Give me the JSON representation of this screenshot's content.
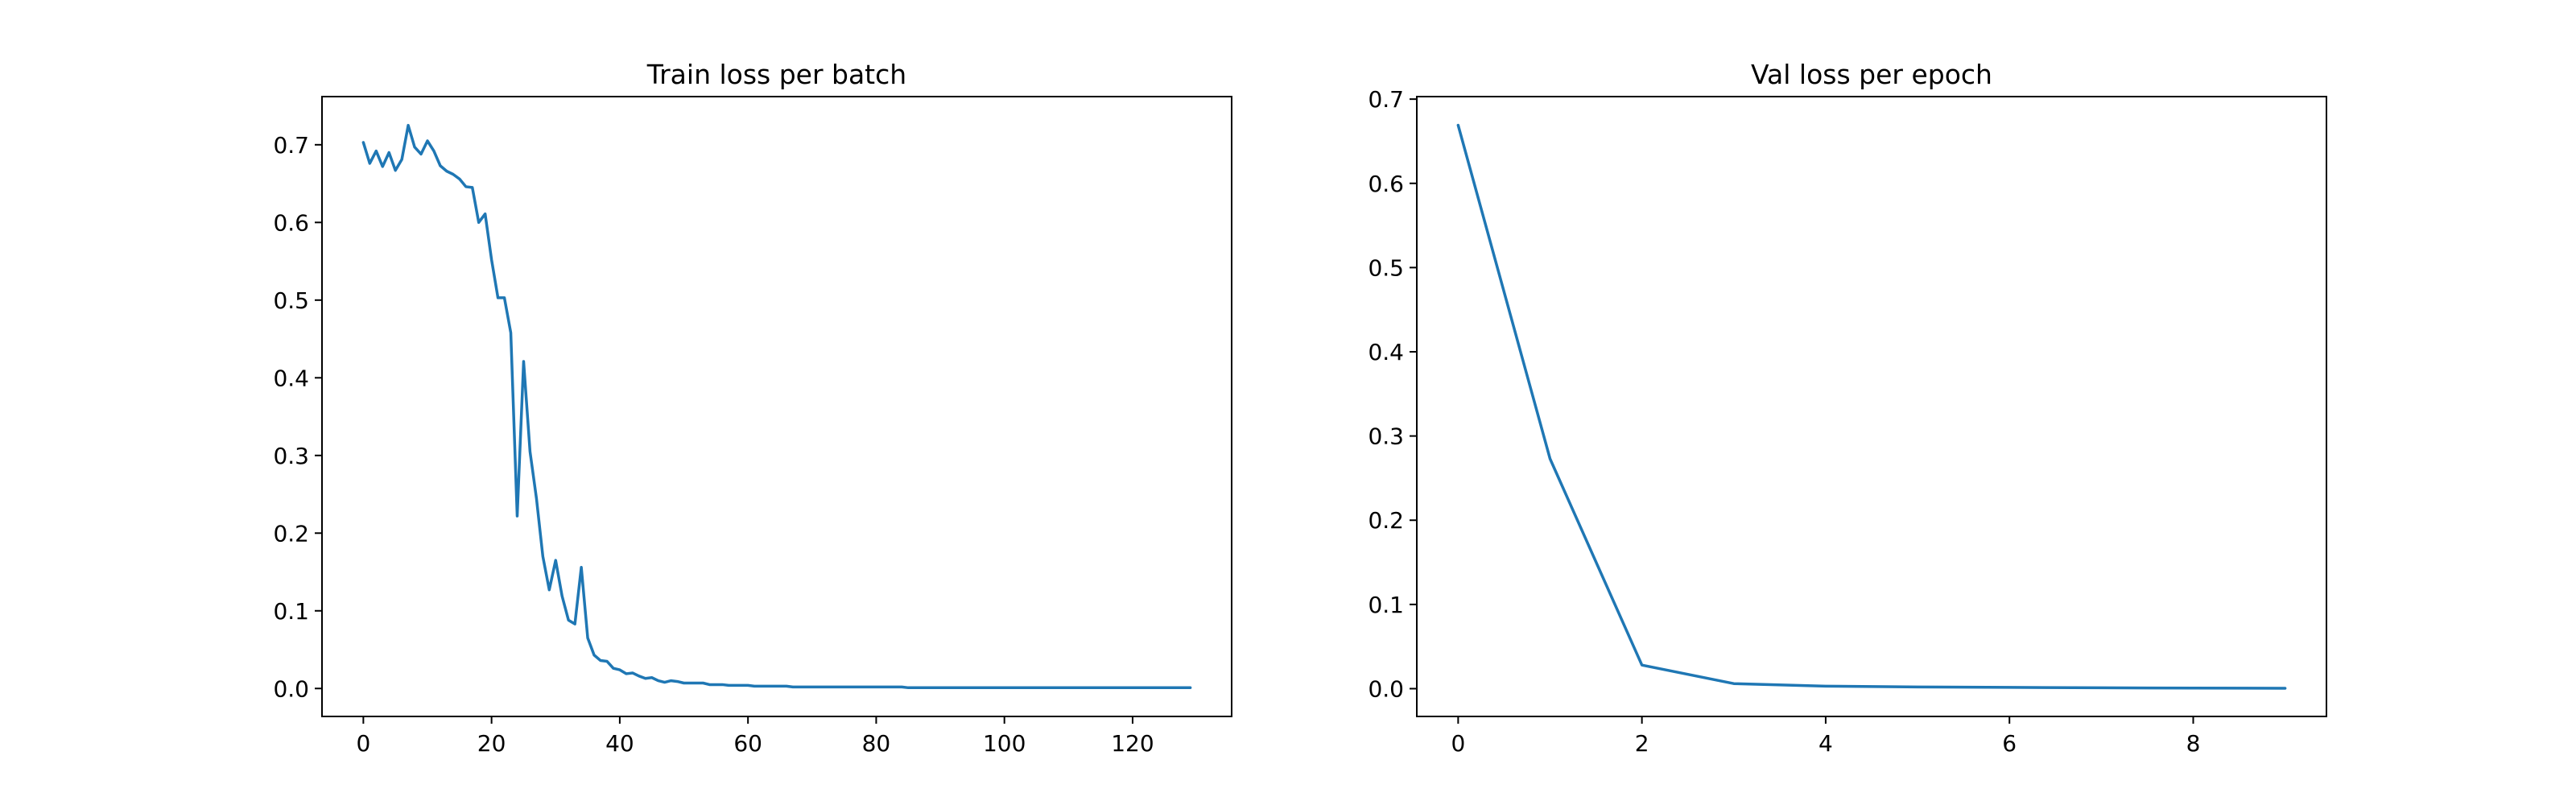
{
  "chart_data": [
    {
      "type": "line",
      "title": "Train loss per batch",
      "xlabel": "",
      "ylabel": "",
      "xlim": [
        -6.45,
        135.45
      ],
      "ylim": [
        -0.036,
        0.762
      ],
      "xticks": [
        0,
        20,
        40,
        60,
        80,
        100,
        120
      ],
      "xtick_labels": [
        "0",
        "20",
        "40",
        "60",
        "80",
        "100",
        "120"
      ],
      "yticks": [
        0.0,
        0.1,
        0.2,
        0.3,
        0.4,
        0.5,
        0.6,
        0.7
      ],
      "ytick_labels": [
        "0.0",
        "0.1",
        "0.2",
        "0.3",
        "0.4",
        "0.5",
        "0.6",
        "0.7"
      ],
      "grid": false,
      "series": [
        {
          "color": "#1f77b4",
          "x": [
            0,
            1,
            2,
            3,
            4,
            5,
            6,
            7,
            8,
            9,
            10,
            11,
            12,
            13,
            14,
            15,
            16,
            17,
            18,
            19,
            20,
            21,
            22,
            23,
            24,
            25,
            26,
            27,
            28,
            29,
            30,
            31,
            32,
            33,
            34,
            35,
            36,
            37,
            38,
            39,
            40,
            41,
            42,
            43,
            44,
            45,
            46,
            47,
            48,
            49,
            50,
            51,
            52,
            53,
            54,
            55,
            56,
            57,
            58,
            59,
            60,
            61,
            62,
            63,
            64,
            65,
            66,
            67,
            68,
            69,
            70,
            71,
            72,
            73,
            74,
            75,
            76,
            77,
            78,
            79,
            80,
            81,
            82,
            83,
            84,
            85,
            86,
            87,
            88,
            89,
            90,
            91,
            92,
            93,
            94,
            95,
            96,
            97,
            98,
            99,
            100,
            101,
            102,
            103,
            104,
            105,
            106,
            107,
            108,
            109,
            110,
            111,
            112,
            113,
            114,
            115,
            116,
            117,
            118,
            119,
            120,
            121,
            122,
            123,
            124,
            125,
            126,
            127,
            128,
            129
          ],
          "values": [
            0.703,
            0.676,
            0.692,
            0.672,
            0.69,
            0.667,
            0.681,
            0.725,
            0.697,
            0.688,
            0.705,
            0.692,
            0.673,
            0.666,
            0.662,
            0.656,
            0.646,
            0.645,
            0.6,
            0.611,
            0.552,
            0.503,
            0.503,
            0.458,
            0.222,
            0.421,
            0.305,
            0.245,
            0.17,
            0.127,
            0.165,
            0.119,
            0.088,
            0.083,
            0.156,
            0.065,
            0.043,
            0.036,
            0.035,
            0.026,
            0.024,
            0.019,
            0.02,
            0.016,
            0.013,
            0.014,
            0.01,
            0.008,
            0.01,
            0.009,
            0.007,
            0.007,
            0.007,
            0.007,
            0.005,
            0.005,
            0.005,
            0.004,
            0.004,
            0.004,
            0.004,
            0.003,
            0.003,
            0.003,
            0.003,
            0.003,
            0.003,
            0.002,
            0.002,
            0.002,
            0.002,
            0.002,
            0.002,
            0.002,
            0.002,
            0.002,
            0.002,
            0.002,
            0.002,
            0.002,
            0.002,
            0.002,
            0.002,
            0.002,
            0.002,
            0.001,
            0.001,
            0.001,
            0.001,
            0.001,
            0.001,
            0.001,
            0.001,
            0.001,
            0.001,
            0.001,
            0.001,
            0.001,
            0.001,
            0.001,
            0.001,
            0.001,
            0.001,
            0.001,
            0.001,
            0.001,
            0.001,
            0.001,
            0.001,
            0.001,
            0.001,
            0.001,
            0.001,
            0.001,
            0.001,
            0.001,
            0.001,
            0.001,
            0.001,
            0.001,
            0.001,
            0.001,
            0.001,
            0.001,
            0.001,
            0.001,
            0.001,
            0.001,
            0.001,
            0.001
          ]
        }
      ]
    },
    {
      "type": "line",
      "title": "Val loss per epoch",
      "xlabel": "",
      "ylabel": "",
      "xlim": [
        -0.45,
        9.45
      ],
      "ylim": [
        -0.033,
        0.703
      ],
      "xticks": [
        0,
        2,
        4,
        6,
        8
      ],
      "xtick_labels": [
        "0",
        "2",
        "4",
        "6",
        "8"
      ],
      "yticks": [
        0.0,
        0.1,
        0.2,
        0.3,
        0.4,
        0.5,
        0.6,
        0.7
      ],
      "ytick_labels": [
        "0.0",
        "0.1",
        "0.2",
        "0.3",
        "0.4",
        "0.5",
        "0.6",
        "0.7"
      ],
      "grid": false,
      "series": [
        {
          "color": "#1f77b4",
          "x": [
            0,
            1,
            2,
            3,
            4,
            5,
            6,
            7,
            8,
            9
          ],
          "values": [
            0.669,
            0.273,
            0.028,
            0.006,
            0.003,
            0.002,
            0.0015,
            0.001,
            0.0007,
            0.0005
          ]
        }
      ]
    }
  ]
}
